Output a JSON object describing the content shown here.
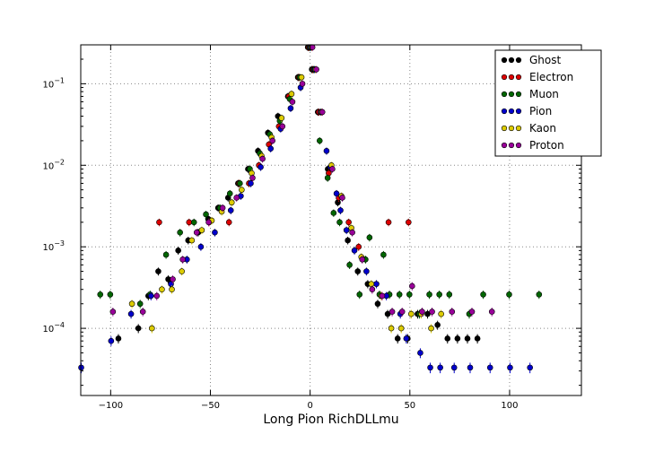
{
  "chart_data": {
    "type": "scatter",
    "title": "",
    "xlabel": "Long Pion RichDLLmu",
    "ylabel": "",
    "yscale": "log",
    "xlim": [
      -115,
      136
    ],
    "ylim": [
      1.5e-05,
      0.3
    ],
    "grid": true,
    "legend_placement": "top-right",
    "x_ticks": [
      {
        "value": -100,
        "label": "−100"
      },
      {
        "value": -50,
        "label": "−50"
      },
      {
        "value": 0,
        "label": "0"
      },
      {
        "value": 50,
        "label": "50"
      },
      {
        "value": 100,
        "label": "100"
      }
    ],
    "y_ticks": [
      {
        "value": 0.1,
        "base": "10",
        "exp": "−1"
      },
      {
        "value": 0.01,
        "base": "10",
        "exp": "−2"
      },
      {
        "value": 0.001,
        "base": "10",
        "exp": "−3"
      },
      {
        "value": 0.0001,
        "base": "10",
        "exp": "−4"
      }
    ],
    "series": [
      {
        "name": "Ghost",
        "color": "#000000",
        "x": [
          -95,
          -85,
          -80,
          -75,
          -70,
          -65,
          -60,
          -55,
          -50,
          -45,
          -40,
          -35,
          -30,
          -25,
          -20,
          -15,
          -10,
          -5,
          0,
          2,
          5,
          10,
          15,
          20,
          25,
          30,
          35,
          40,
          45,
          50,
          55,
          60,
          65,
          70,
          75,
          80,
          85
        ],
        "y": [
          7.5e-05,
          0.0001,
          0.00025,
          0.0005,
          0.0004,
          0.0009,
          0.0012,
          0.0015,
          0.0022,
          0.003,
          0.004,
          0.006,
          0.009,
          0.015,
          0.025,
          0.04,
          0.07,
          0.12,
          0.28,
          0.15,
          0.045,
          0.009,
          0.0035,
          0.0012,
          0.0005,
          0.00035,
          0.0002,
          0.00015,
          7.5e-05,
          7.5e-05,
          0.00015,
          0.00015,
          0.00011,
          7.5e-05,
          7.5e-05,
          7.5e-05,
          7.5e-05
        ]
      },
      {
        "name": "Electron",
        "color": "#dd0000",
        "x": [
          -75,
          -60,
          -50,
          -40,
          -35,
          -30,
          -25,
          -20,
          -15,
          -10,
          -5,
          0,
          2,
          5,
          10,
          15,
          20,
          25,
          40,
          50
        ],
        "y": [
          0.002,
          0.002,
          0.002,
          0.002,
          0.006,
          0.006,
          0.01,
          0.018,
          0.03,
          0.07,
          0.12,
          0.28,
          0.15,
          0.045,
          0.008,
          0.004,
          0.002,
          0.001,
          0.002,
          0.002
        ]
      },
      {
        "name": "Muon",
        "color": "#006600",
        "x": [
          -105,
          -100,
          -85,
          -80,
          -72,
          -65,
          -58,
          -52,
          -45,
          -40,
          -35,
          -30,
          -25,
          -20,
          -15,
          -10,
          -5,
          0,
          2,
          5,
          9,
          12,
          15,
          20,
          25,
          28,
          30,
          35,
          37,
          40,
          45,
          50,
          55,
          60,
          65,
          70,
          80,
          87,
          100,
          115
        ],
        "y": [
          0.00026,
          0.00026,
          0.0002,
          0.00026,
          0.0008,
          0.0015,
          0.002,
          0.0025,
          0.003,
          0.0045,
          0.006,
          0.009,
          0.014,
          0.024,
          0.035,
          0.065,
          0.12,
          0.28,
          0.15,
          0.02,
          0.007,
          0.0026,
          0.002,
          0.0006,
          0.00026,
          0.0007,
          0.0013,
          0.00026,
          0.0008,
          0.00026,
          0.00026,
          0.00026,
          0.00015,
          0.00026,
          0.00026,
          0.00026,
          0.00015,
          0.00026,
          0.00026,
          0.00026
        ]
      },
      {
        "name": "Pion",
        "color": "#0000cc",
        "x": [
          -115,
          -100,
          -90,
          -80,
          -70,
          -62,
          -55,
          -48,
          -40,
          -35,
          -30,
          -25,
          -20,
          -15,
          -10,
          -5,
          0,
          2,
          5,
          8,
          10,
          13,
          15,
          18,
          22,
          28,
          33,
          38,
          45,
          48,
          55,
          60,
          65,
          72,
          80,
          90,
          100,
          110
        ],
        "y": [
          3.3e-05,
          7e-05,
          0.00015,
          0.00025,
          0.00035,
          0.0007,
          0.001,
          0.0015,
          0.0028,
          0.0042,
          0.006,
          0.0095,
          0.016,
          0.028,
          0.05,
          0.09,
          0.28,
          0.15,
          0.045,
          0.015,
          0.0095,
          0.0045,
          0.0028,
          0.0016,
          0.0009,
          0.0005,
          0.00035,
          0.00025,
          0.00015,
          7.5e-05,
          5e-05,
          3.3e-05,
          3.3e-05,
          3.3e-05,
          3.3e-05,
          3.3e-05,
          3.3e-05,
          3.3e-05
        ]
      },
      {
        "name": "Kaon",
        "color": "#ddcc00",
        "x": [
          -90,
          -80,
          -75,
          -70,
          -65,
          -60,
          -55,
          -50,
          -45,
          -40,
          -35,
          -30,
          -25,
          -20,
          -15,
          -10,
          -5,
          0,
          2,
          5,
          10,
          15,
          20,
          25,
          30,
          35,
          40,
          45,
          50,
          55,
          60,
          65
        ],
        "y": [
          0.0002,
          0.0001,
          0.0003,
          0.0003,
          0.0005,
          0.0012,
          0.0016,
          0.0021,
          0.0027,
          0.0035,
          0.005,
          0.008,
          0.013,
          0.022,
          0.038,
          0.075,
          0.12,
          0.28,
          0.15,
          0.045,
          0.01,
          0.0042,
          0.0017,
          0.00075,
          0.00035,
          0.00025,
          0.0001,
          0.0001,
          0.00015,
          0.00015,
          0.0001,
          0.00015
        ]
      },
      {
        "name": "Proton",
        "color": "#990099",
        "x": [
          -100,
          -85,
          -78,
          -70,
          -65,
          -58,
          -52,
          -45,
          -38,
          -30,
          -25,
          -20,
          -15,
          -10,
          -5,
          0,
          2,
          5,
          10,
          15,
          20,
          25,
          30,
          35,
          40,
          45,
          50,
          55,
          60,
          70,
          80,
          90
        ],
        "y": [
          0.00016,
          0.00016,
          0.00025,
          0.0004,
          0.0007,
          0.0015,
          0.002,
          0.003,
          0.004,
          0.007,
          0.012,
          0.02,
          0.03,
          0.06,
          0.1,
          0.28,
          0.15,
          0.045,
          0.009,
          0.004,
          0.0015,
          0.0007,
          0.0003,
          0.00025,
          0.00016,
          0.00016,
          0.00033,
          0.00016,
          0.00016,
          0.00016,
          0.00016,
          0.00016
        ]
      }
    ]
  }
}
